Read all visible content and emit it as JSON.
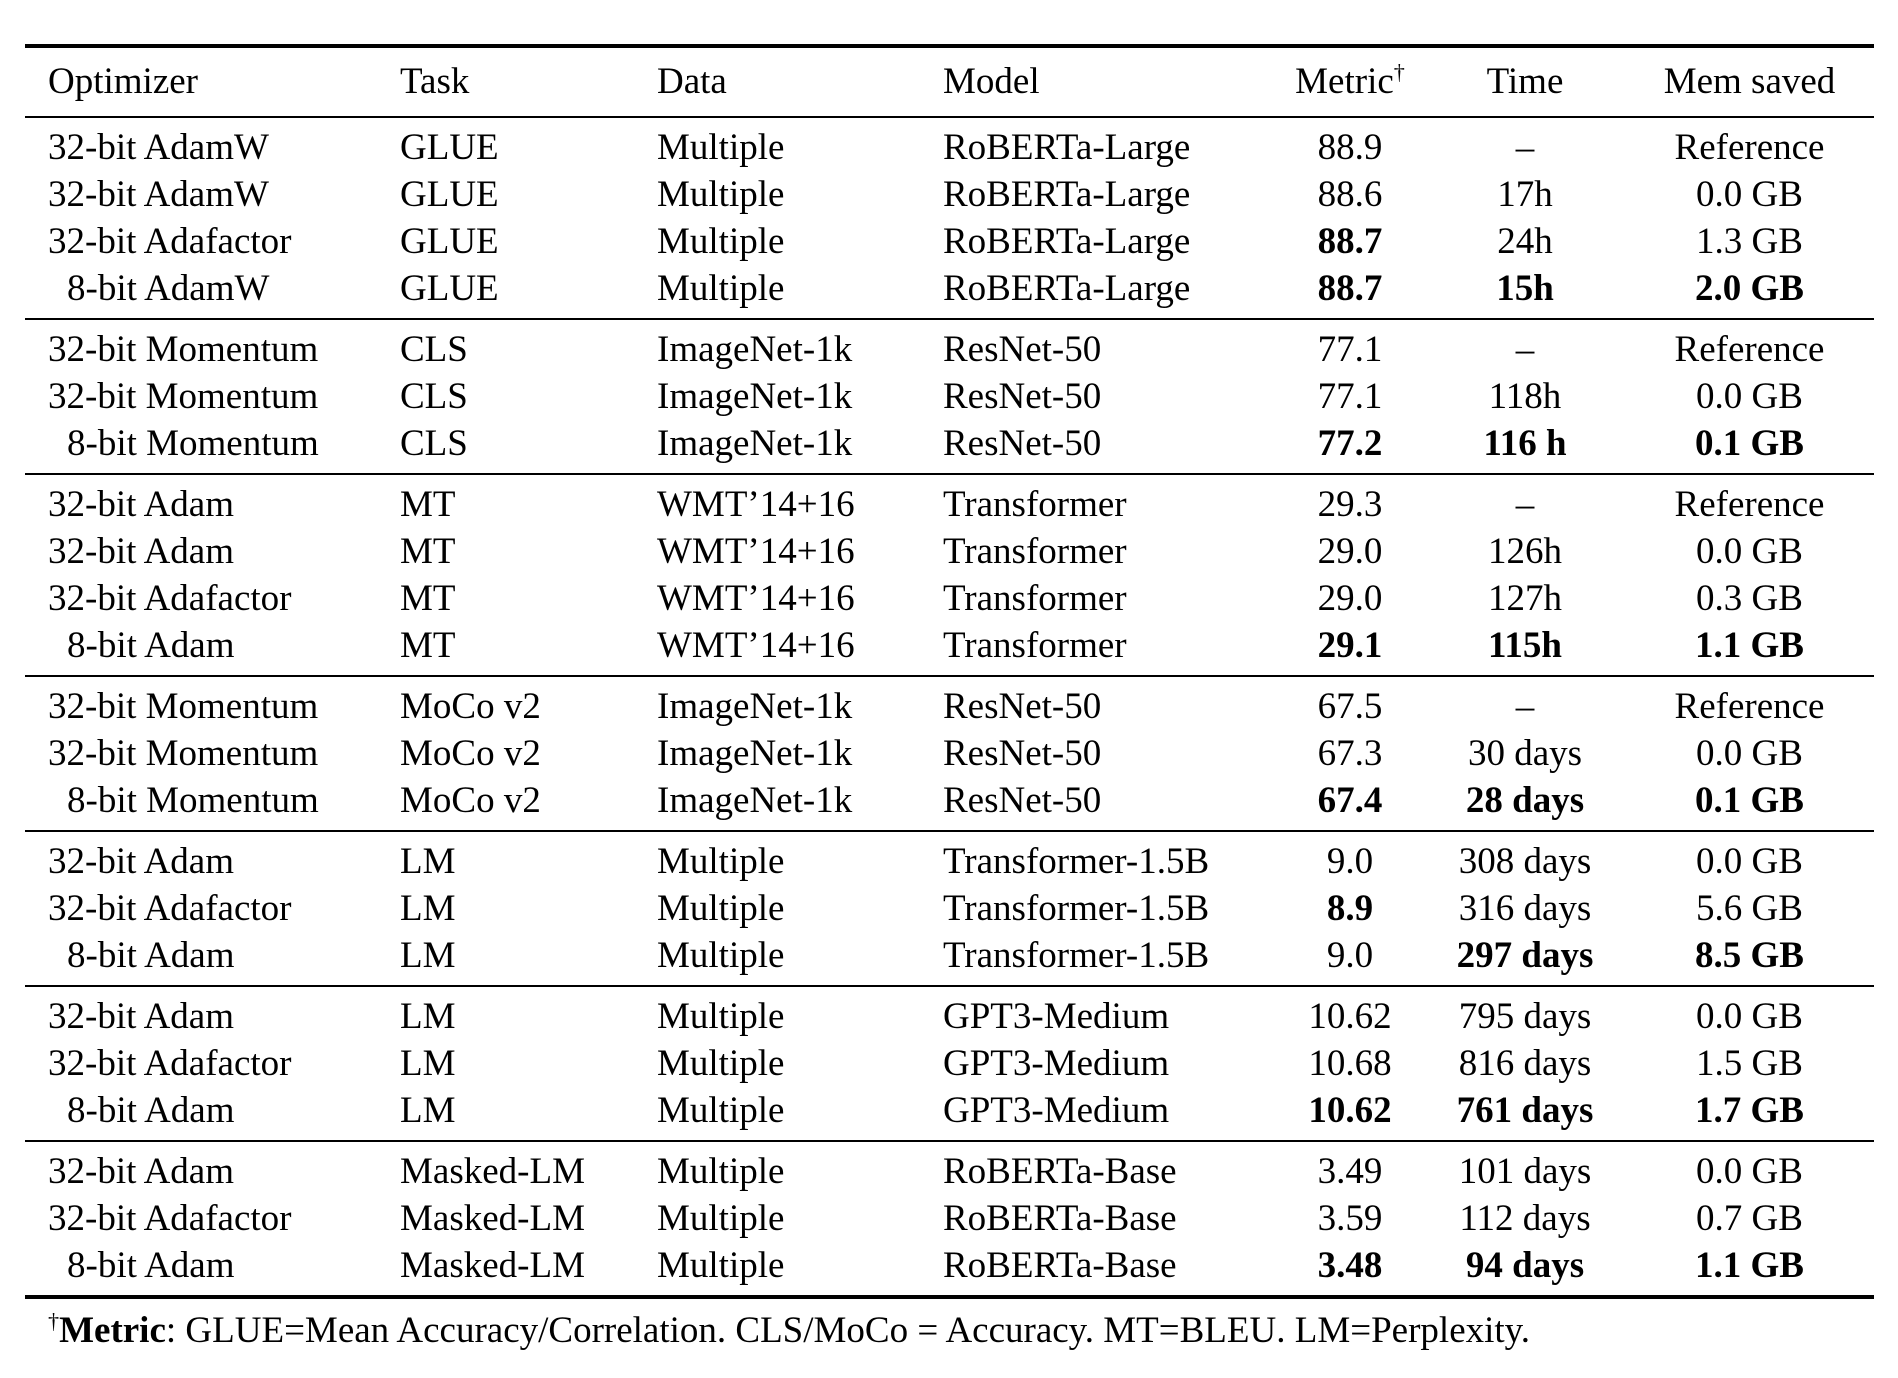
{
  "table": {
    "columns": [
      {
        "key": "optimizer",
        "label": "Optimizer",
        "align": "left"
      },
      {
        "key": "task",
        "label": "Task",
        "align": "left"
      },
      {
        "key": "data",
        "label": "Data",
        "align": "left"
      },
      {
        "key": "model",
        "label": "Model",
        "align": "left"
      },
      {
        "key": "metric",
        "label": "Metric",
        "sup": "†",
        "align": "center"
      },
      {
        "key": "time",
        "label": "Time",
        "align": "center"
      },
      {
        "key": "mem-saved",
        "label": "Mem saved",
        "align": "center"
      }
    ],
    "groups": [
      {
        "rows": [
          {
            "cells": [
              "32-bit AdamW",
              "GLUE",
              "Multiple",
              "RoBERTa-Large",
              "88.9",
              "–",
              "Reference"
            ],
            "bold": []
          },
          {
            "cells": [
              "32-bit AdamW",
              "GLUE",
              "Multiple",
              "RoBERTa-Large",
              "88.6",
              "17h",
              "0.0 GB"
            ],
            "bold": []
          },
          {
            "cells": [
              "32-bit Adafactor",
              "GLUE",
              "Multiple",
              "RoBERTa-Large",
              "88.7",
              "24h",
              "1.3 GB"
            ],
            "bold": [
              4
            ]
          },
          {
            "cells": [
              "8-bit AdamW",
              "GLUE",
              "Multiple",
              "RoBERTa-Large",
              "88.7",
              "15h",
              "2.0 GB"
            ],
            "bold": [
              4,
              5,
              6
            ]
          }
        ]
      },
      {
        "rows": [
          {
            "cells": [
              "32-bit Momentum",
              "CLS",
              "ImageNet-1k",
              "ResNet-50",
              "77.1",
              "–",
              "Reference"
            ],
            "bold": []
          },
          {
            "cells": [
              "32-bit Momentum",
              "CLS",
              "ImageNet-1k",
              "ResNet-50",
              "77.1",
              "118h",
              "0.0 GB"
            ],
            "bold": []
          },
          {
            "cells": [
              "8-bit Momentum",
              "CLS",
              "ImageNet-1k",
              "ResNet-50",
              "77.2",
              "116 h",
              "0.1 GB"
            ],
            "bold": [
              4,
              5,
              6
            ]
          }
        ]
      },
      {
        "rows": [
          {
            "cells": [
              "32-bit Adam",
              "MT",
              "WMT’14+16",
              "Transformer",
              "29.3",
              "–",
              "Reference"
            ],
            "bold": []
          },
          {
            "cells": [
              "32-bit Adam",
              "MT",
              "WMT’14+16",
              "Transformer",
              "29.0",
              "126h",
              "0.0 GB"
            ],
            "bold": []
          },
          {
            "cells": [
              "32-bit Adafactor",
              "MT",
              "WMT’14+16",
              "Transformer",
              "29.0",
              "127h",
              "0.3 GB"
            ],
            "bold": []
          },
          {
            "cells": [
              "8-bit Adam",
              "MT",
              "WMT’14+16",
              "Transformer",
              "29.1",
              "115h",
              "1.1 GB"
            ],
            "bold": [
              4,
              5,
              6
            ]
          }
        ]
      },
      {
        "rows": [
          {
            "cells": [
              "32-bit Momentum",
              "MoCo v2",
              "ImageNet-1k",
              "ResNet-50",
              "67.5",
              "–",
              "Reference"
            ],
            "bold": []
          },
          {
            "cells": [
              "32-bit Momentum",
              "MoCo v2",
              "ImageNet-1k",
              "ResNet-50",
              "67.3",
              "30 days",
              "0.0 GB"
            ],
            "bold": []
          },
          {
            "cells": [
              "8-bit Momentum",
              "MoCo v2",
              "ImageNet-1k",
              "ResNet-50",
              "67.4",
              "28 days",
              "0.1 GB"
            ],
            "bold": [
              4,
              5,
              6
            ]
          }
        ]
      },
      {
        "rows": [
          {
            "cells": [
              "32-bit Adam",
              "LM",
              "Multiple",
              "Transformer-1.5B",
              "9.0",
              "308 days",
              "0.0 GB"
            ],
            "bold": []
          },
          {
            "cells": [
              "32-bit Adafactor",
              "LM",
              "Multiple",
              "Transformer-1.5B",
              "8.9",
              "316 days",
              "5.6 GB"
            ],
            "bold": [
              4
            ]
          },
          {
            "cells": [
              "8-bit Adam",
              "LM",
              "Multiple",
              "Transformer-1.5B",
              "9.0",
              "297 days",
              "8.5 GB"
            ],
            "bold": [
              5,
              6
            ]
          }
        ]
      },
      {
        "rows": [
          {
            "cells": [
              "32-bit Adam",
              "LM",
              "Multiple",
              "GPT3-Medium",
              "10.62",
              "795 days",
              "0.0 GB"
            ],
            "bold": []
          },
          {
            "cells": [
              "32-bit Adafactor",
              "LM",
              "Multiple",
              "GPT3-Medium",
              "10.68",
              "816 days",
              "1.5 GB"
            ],
            "bold": []
          },
          {
            "cells": [
              "8-bit Adam",
              "LM",
              "Multiple",
              "GPT3-Medium",
              "10.62",
              "761 days",
              "1.7 GB"
            ],
            "bold": [
              4,
              5,
              6
            ]
          }
        ]
      },
      {
        "rows": [
          {
            "cells": [
              "32-bit Adam",
              "Masked-LM",
              "Multiple",
              "RoBERTa-Base",
              "3.49",
              "101 days",
              "0.0 GB"
            ],
            "bold": []
          },
          {
            "cells": [
              "32-bit Adafactor",
              "Masked-LM",
              "Multiple",
              "RoBERTa-Base",
              "3.59",
              "112 days",
              "0.7 GB"
            ],
            "bold": []
          },
          {
            "cells": [
              "8-bit Adam",
              "Masked-LM",
              "Multiple",
              "RoBERTa-Base",
              "3.48",
              "94 days",
              "1.1 GB"
            ],
            "bold": [
              4,
              5,
              6
            ]
          }
        ]
      }
    ]
  },
  "footnote": {
    "dagger": "†",
    "label": "Metric",
    "text": ": GLUE=Mean Accuracy/Correlation. CLS/MoCo = Accuracy. MT=BLEU. LM=Perplexity."
  }
}
